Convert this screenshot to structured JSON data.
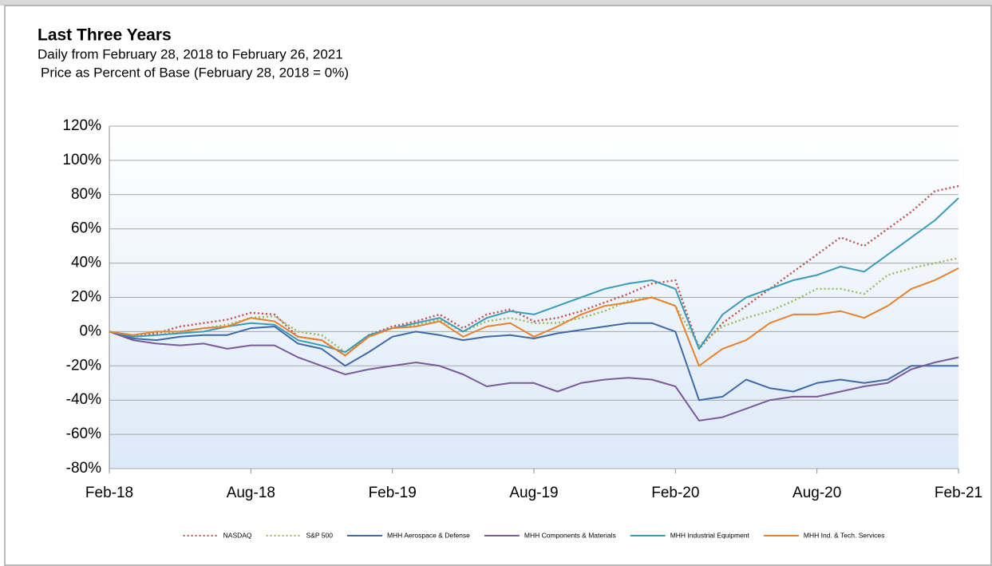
{
  "chart_data": {
    "type": "line",
    "title": "Last Three Years",
    "subtitle": "Daily from February 28, 2018 to February 26, 2021",
    "y_axis_label": "Price as Percent of Base (February 28, 2018 = 0%)",
    "categories": [
      "Feb-18",
      null,
      null,
      null,
      null,
      null,
      "Aug-18",
      null,
      null,
      null,
      null,
      null,
      "Feb-19",
      null,
      null,
      null,
      null,
      null,
      "Aug-19",
      null,
      null,
      null,
      null,
      null,
      "Feb-20",
      null,
      null,
      null,
      null,
      null,
      "Aug-20",
      null,
      null,
      null,
      null,
      null,
      "Feb-21"
    ],
    "ylim": [
      -80,
      120
    ],
    "yticks": [
      {
        "value": -80,
        "label": "-80%"
      },
      {
        "value": -60,
        "label": "-60%"
      },
      {
        "value": -40,
        "label": "-40%"
      },
      {
        "value": -20,
        "label": "-20%"
      },
      {
        "value": 0,
        "label": "0%"
      },
      {
        "value": 20,
        "label": "20%"
      },
      {
        "value": 40,
        "label": "40%"
      },
      {
        "value": 60,
        "label": "60%"
      },
      {
        "value": 80,
        "label": "80%"
      },
      {
        "value": 100,
        "label": "100%"
      },
      {
        "value": 120,
        "label": "120%"
      }
    ],
    "grid": true,
    "legend": "bottom",
    "series": [
      {
        "name": "NASDAQ",
        "color": "#c0504d",
        "style": "dotted",
        "values": [
          0,
          -3,
          -1,
          3,
          5,
          7,
          11,
          10,
          -3,
          -5,
          -14,
          -2,
          3,
          6,
          10,
          2,
          10,
          13,
          6,
          8,
          12,
          17,
          22,
          28,
          30,
          -10,
          5,
          15,
          25,
          35,
          45,
          55,
          50,
          60,
          70,
          82,
          85
        ]
      },
      {
        "name": "S&P 500",
        "color": "#9bbb59",
        "style": "dotted",
        "values": [
          0,
          -3,
          -2,
          0,
          2,
          4,
          8,
          9,
          0,
          -2,
          -12,
          -3,
          2,
          4,
          7,
          0,
          6,
          8,
          5,
          5,
          8,
          12,
          18,
          20,
          15,
          -8,
          3,
          8,
          12,
          18,
          25,
          25,
          22,
          33,
          37,
          40,
          43
        ]
      },
      {
        "name": "MHH Aerospace & Defense",
        "color": "#3e6aa8",
        "style": "solid",
        "values": [
          0,
          -4,
          -5,
          -3,
          -2,
          -2,
          2,
          3,
          -7,
          -10,
          -20,
          -12,
          -3,
          0,
          -2,
          -5,
          -3,
          -2,
          -4,
          -1,
          1,
          3,
          5,
          5,
          0,
          -40,
          -38,
          -28,
          -33,
          -35,
          -30,
          -28,
          -30,
          -28,
          -20,
          -20,
          -20
        ]
      },
      {
        "name": "MHH Components & Materials",
        "color": "#7a5a9a",
        "style": "solid",
        "values": [
          0,
          -5,
          -7,
          -8,
          -7,
          -10,
          -8,
          -8,
          -15,
          -20,
          -25,
          -22,
          -20,
          -18,
          -20,
          -25,
          -32,
          -30,
          -30,
          -35,
          -30,
          -28,
          -27,
          -28,
          -32,
          -52,
          -50,
          -45,
          -40,
          -38,
          -38,
          -35,
          -32,
          -30,
          -22,
          -18,
          -15
        ]
      },
      {
        "name": "MHH Industrial Equipment",
        "color": "#3a9cba",
        "style": "solid",
        "values": [
          0,
          -3,
          -2,
          -1,
          0,
          3,
          5,
          4,
          -5,
          -8,
          -12,
          -2,
          2,
          5,
          8,
          0,
          8,
          12,
          10,
          15,
          20,
          25,
          28,
          30,
          25,
          -10,
          10,
          20,
          25,
          30,
          33,
          38,
          35,
          45,
          55,
          65,
          78
        ]
      },
      {
        "name": "MHH Ind. & Tech. Services",
        "color": "#e8822e",
        "style": "solid",
        "values": [
          0,
          -2,
          0,
          0,
          2,
          3,
          8,
          6,
          -3,
          -5,
          -14,
          -3,
          2,
          3,
          6,
          -3,
          3,
          5,
          -3,
          3,
          10,
          15,
          17,
          20,
          15,
          -20,
          -10,
          -5,
          5,
          10,
          10,
          12,
          8,
          15,
          25,
          30,
          37
        ]
      }
    ]
  }
}
